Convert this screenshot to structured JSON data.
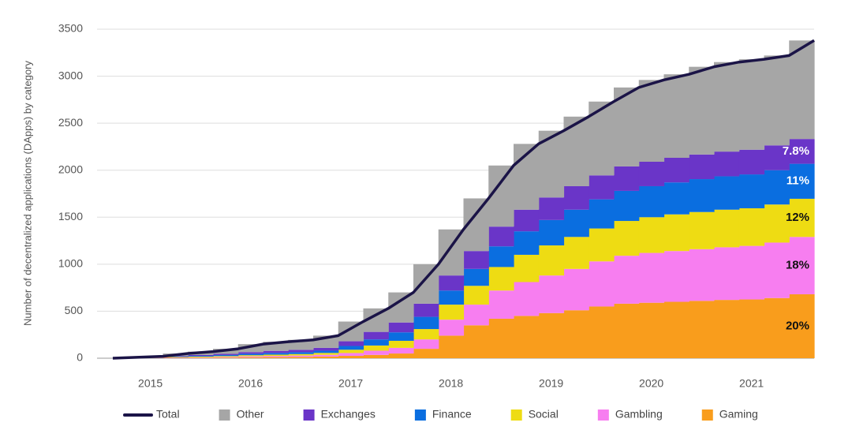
{
  "chart_data": {
    "type": "stacked_step_area",
    "y_axis_label": "Number of decentralized applications (DApps) by category",
    "categories": [
      null,
      "2015",
      null,
      null,
      null,
      "2016",
      null,
      null,
      null,
      "2017",
      null,
      null,
      null,
      "2018",
      null,
      null,
      null,
      "2019",
      null,
      null,
      null,
      "2020",
      null,
      null,
      null,
      "2021",
      null,
      null
    ],
    "series": [
      {
        "name": "Total",
        "color": "#1b1447",
        "kind": "line",
        "values": [
          0,
          20,
          50,
          70,
          100,
          150,
          175,
          195,
          240,
          390,
          530,
          700,
          1000,
          1370,
          1700,
          2050,
          2280,
          2420,
          2570,
          2730,
          2880,
          2960,
          3020,
          3100,
          3150,
          3180,
          3220,
          3380
        ]
      },
      {
        "name": "Other",
        "color": "#a6a6a6",
        "values": [
          0,
          8,
          25,
          36,
          54,
          85,
          97,
          106,
          130,
          210,
          250,
          320,
          420,
          490,
          560,
          650,
          700,
          710,
          740,
          785,
          840,
          870,
          888,
          933,
          952,
          962,
          956,
          1048
        ]
      },
      {
        "name": "Exchanges",
        "color": "#6a35c8",
        "values": [
          0,
          3,
          6,
          9,
          12,
          18,
          22,
          25,
          30,
          50,
          80,
          105,
          140,
          160,
          190,
          210,
          230,
          240,
          250,
          255,
          260,
          260,
          262,
          262,
          263,
          263,
          264,
          264
        ]
      },
      {
        "name": "Finance",
        "color": "#0a6ee0",
        "values": [
          0,
          3,
          6,
          8,
          11,
          15,
          18,
          20,
          24,
          40,
          65,
          90,
          130,
          150,
          180,
          220,
          250,
          270,
          290,
          310,
          320,
          330,
          340,
          350,
          355,
          360,
          365,
          372
        ]
      },
      {
        "name": "Social",
        "color": "#eedc13",
        "values": [
          0,
          2,
          5,
          7,
          9,
          12,
          14,
          16,
          20,
          35,
          55,
          75,
          110,
          160,
          200,
          250,
          290,
          320,
          340,
          350,
          370,
          380,
          390,
          395,
          400,
          400,
          405,
          406
        ]
      },
      {
        "name": "Gambling",
        "color": "#f77ef0",
        "values": [
          0,
          2,
          4,
          5,
          7,
          10,
          12,
          14,
          18,
          30,
          45,
          60,
          100,
          170,
          220,
          300,
          360,
          400,
          440,
          480,
          510,
          530,
          540,
          550,
          560,
          570,
          590,
          610
        ]
      },
      {
        "name": "Gaming",
        "color": "#f99d1c",
        "values": [
          0,
          2,
          4,
          5,
          7,
          10,
          12,
          14,
          18,
          25,
          35,
          50,
          100,
          240,
          350,
          420,
          450,
          480,
          510,
          550,
          580,
          590,
          600,
          610,
          620,
          625,
          640,
          680
        ]
      }
    ],
    "annotations": [
      "7.8%",
      "11%",
      "12%",
      "18%",
      "20%"
    ],
    "ylim": [
      0,
      3500
    ],
    "yticks": [
      0,
      500,
      1000,
      1500,
      2000,
      2500,
      3000,
      3500
    ],
    "grid": true
  }
}
